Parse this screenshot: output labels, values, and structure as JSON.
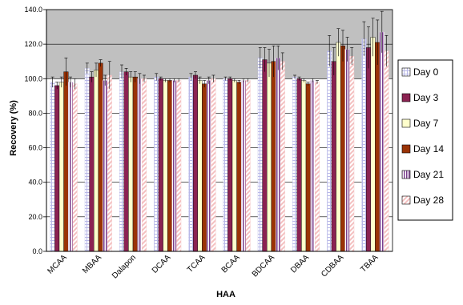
{
  "chart_data": {
    "type": "bar",
    "title": "",
    "xlabel": "HAA",
    "ylabel": "Recovery (%)",
    "ylim": [
      0,
      140
    ],
    "yticks": [
      "0.0",
      "20.0",
      "40.0",
      "60.0",
      "80.0",
      "100.0",
      "120.0",
      "140.0"
    ],
    "grid": true,
    "legend_position": "right",
    "categories": [
      "MCAA",
      "MBAA",
      "Dalapon",
      "DCAA",
      "TCAA",
      "BCAA",
      "BDCAA",
      "DBAA",
      "CDBAA",
      "TBAA"
    ],
    "series": [
      {
        "name": "Day 0",
        "color": "#b8b8e8",
        "pattern": "grid",
        "values": [
          98,
          106,
          104,
          101,
          101,
          100,
          112,
          101,
          116,
          123
        ],
        "errors": [
          3,
          3,
          4,
          2,
          2,
          1,
          6,
          1,
          9,
          10
        ]
      },
      {
        "name": "Day 3",
        "color": "#8b2252",
        "pattern": "solid",
        "values": [
          96,
          101,
          104,
          100,
          102,
          100,
          111,
          100,
          110,
          118
        ],
        "errors": [
          2,
          3,
          2,
          1,
          2,
          1,
          7,
          1,
          8,
          12
        ]
      },
      {
        "name": "Day 7",
        "color": "#ffffcc",
        "pattern": "solid",
        "values": [
          98,
          105,
          101,
          99,
          99,
          99,
          109,
          99,
          121,
          124
        ],
        "errors": [
          3,
          4,
          3,
          1,
          2,
          1,
          8,
          1,
          8,
          11
        ]
      },
      {
        "name": "Day 14",
        "color": "#9a3306",
        "pattern": "solid",
        "values": [
          104,
          109,
          101,
          99,
          97,
          98,
          110,
          97,
          119,
          121
        ],
        "errors": [
          8,
          2,
          3,
          1,
          2,
          1,
          9,
          1,
          9,
          13
        ]
      },
      {
        "name": "Day 21",
        "color": "#e8d8f4",
        "pattern": "vstripes",
        "values": [
          98,
          99,
          100,
          99,
          99,
          99,
          112,
          99,
          117,
          127
        ],
        "errors": [
          3,
          3,
          3,
          1,
          2,
          1,
          7,
          1,
          7,
          12
        ]
      },
      {
        "name": "Day 28",
        "color": "#f4c0c0",
        "pattern": "diag",
        "values": [
          97,
          102,
          100,
          99,
          100,
          99,
          110,
          98,
          113,
          116
        ],
        "errors": [
          3,
          8,
          2,
          1,
          2,
          1,
          5,
          1,
          5,
          9
        ]
      }
    ]
  }
}
